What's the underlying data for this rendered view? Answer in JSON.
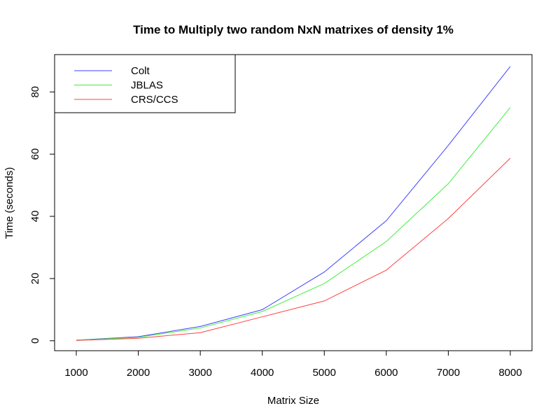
{
  "chart_data": {
    "type": "line",
    "title": "Time to Multiply two random NxN matrixes of density 1%",
    "xlabel": "Matrix Size",
    "ylabel": "Time (seconds)",
    "x": [
      1000,
      2000,
      3000,
      4000,
      5000,
      6000,
      7000,
      8000
    ],
    "x_ticks": [
      1000,
      2000,
      3000,
      4000,
      5000,
      6000,
      7000,
      8000
    ],
    "y_ticks": [
      0,
      20,
      40,
      60,
      80
    ],
    "xlim": [
      650,
      8350
    ],
    "ylim": [
      -3.2,
      92
    ],
    "grid": false,
    "legend_position": "top-left",
    "series": [
      {
        "name": "Colt",
        "color": "#4040ff",
        "values": [
          0.2,
          1.3,
          4.6,
          10.0,
          22.1,
          38.6,
          62.8,
          88.2
        ]
      },
      {
        "name": "JBLAS",
        "color": "#40ee40",
        "values": [
          0.2,
          1.1,
          4.1,
          9.4,
          18.4,
          31.9,
          50.5,
          75.0
        ]
      },
      {
        "name": "CRS/CCS",
        "color": "#ff4040",
        "values": [
          0.1,
          0.8,
          2.6,
          7.7,
          12.8,
          22.7,
          39.3,
          58.7
        ]
      }
    ]
  }
}
